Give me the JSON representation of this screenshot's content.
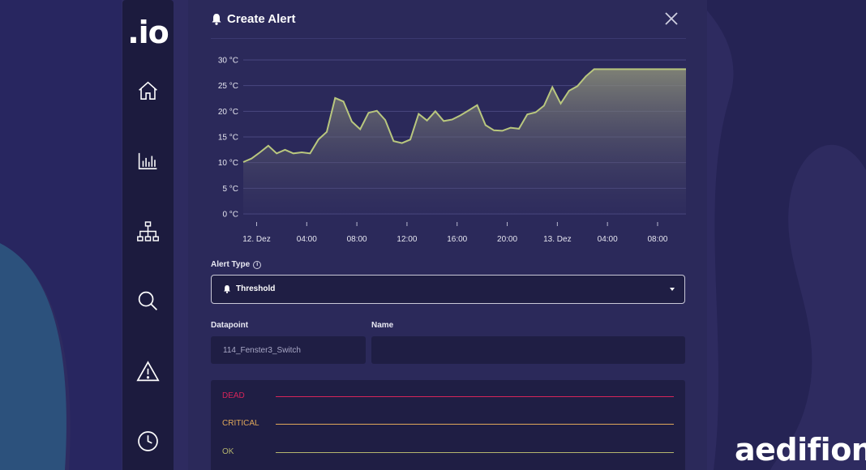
{
  "sidebar": {
    "logo": ".io",
    "nav": [
      {
        "icon": "home-icon"
      },
      {
        "icon": "bar-chart-icon"
      },
      {
        "icon": "sitemap-icon"
      },
      {
        "icon": "search-icon"
      },
      {
        "icon": "alert-triangle-icon"
      },
      {
        "icon": "clock-icon"
      }
    ]
  },
  "modal": {
    "title": "Create Alert",
    "title_icon": "bell-icon",
    "close_icon": "close-icon"
  },
  "colors": {
    "line": "#b9c77e",
    "dead": "#d6245a",
    "critical": "#e0a85a",
    "ok": "#b5b56e"
  },
  "chart_data": {
    "type": "area",
    "title": "",
    "xlabel": "",
    "ylabel": "",
    "y_unit": "°C",
    "ylim": [
      0,
      30
    ],
    "y_ticks": [
      0,
      5,
      10,
      15,
      20,
      25,
      30
    ],
    "y_tick_labels": [
      "0 °C",
      "5 °C",
      "10 °C",
      "15 °C",
      "20 °C",
      "25 °C",
      "30 °C"
    ],
    "x_ticks": [
      "12. Dez",
      "04:00",
      "08:00",
      "12:00",
      "16:00",
      "20:00",
      "13. Dez",
      "04:00",
      "08:00"
    ],
    "grid": true,
    "series": [
      {
        "x_hours": [
          0,
          1,
          2,
          3,
          4,
          5,
          6,
          7,
          8,
          9,
          10,
          11,
          12,
          13,
          14,
          15,
          16,
          17,
          18,
          19,
          20,
          21,
          22,
          23,
          24,
          25,
          26,
          27,
          28,
          29,
          30,
          31,
          32,
          33,
          34,
          35,
          36,
          37,
          38,
          39,
          40,
          41,
          42,
          43,
          44,
          45,
          46,
          47,
          48,
          49,
          50,
          51,
          52,
          53
        ],
        "values": [
          10.1,
          10.8,
          12.0,
          13.3,
          11.8,
          12.5,
          11.8,
          12.0,
          11.8,
          14.5,
          16.0,
          22.6,
          21.9,
          18.0,
          16.5,
          19.7,
          20.1,
          18.3,
          14.2,
          13.8,
          14.5,
          19.5,
          18.2,
          20.0,
          18.1,
          18.4,
          19.2,
          20.2,
          21.2,
          17.3,
          16.3,
          16.2,
          16.8,
          16.6,
          19.4,
          19.8,
          21.1,
          24.7,
          21.5,
          24.0,
          24.9,
          26.8,
          28.2,
          28.2,
          28.2,
          28.2,
          28.2,
          28.2,
          28.2,
          28.2,
          28.2,
          28.2,
          28.2,
          28.2
        ]
      }
    ]
  },
  "form": {
    "alert_type_label": "Alert Type",
    "alert_type_value": "Threshold",
    "datapoint_label": "Datapoint",
    "datapoint_value": "114_Fenster3_Switch",
    "name_label": "Name",
    "name_value": ""
  },
  "levels": [
    {
      "label": "DEAD"
    },
    {
      "label": "CRITICAL"
    },
    {
      "label": "OK"
    }
  ],
  "brand": "aedifion"
}
